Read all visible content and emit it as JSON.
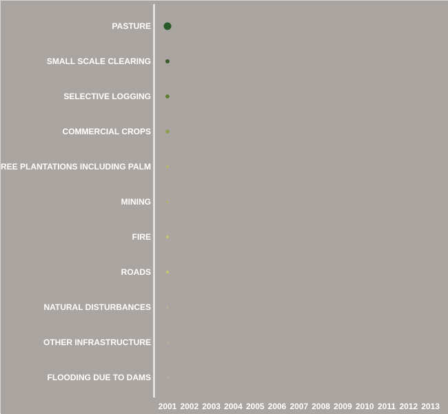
{
  "chart_data": {
    "type": "scatter",
    "title": "",
    "xlabel": "",
    "ylabel": "",
    "x": [
      "2001",
      "2002",
      "2003",
      "2004",
      "2005",
      "2006",
      "2007",
      "2008",
      "2009",
      "2010",
      "2011",
      "2012",
      "2013"
    ],
    "categories": [
      "PASTURE",
      "SMALL SCALE CLEARING",
      "SELECTIVE LOGGING",
      "COMMERCIAL CROPS",
      "TREE PLANTATIONS INCLUDING PALM",
      "MINING",
      "FIRE",
      "ROADS",
      "NATURAL DISTURBANCES",
      "OTHER INFRASTRUCTURE",
      "FLOODING DUE TO DAMS"
    ],
    "points": [
      {
        "category": "PASTURE",
        "year": "2001",
        "size": 100
      },
      {
        "category": "SMALL SCALE CLEARING",
        "year": "2001",
        "size": 30
      },
      {
        "category": "SELECTIVE LOGGING",
        "year": "2001",
        "size": 28
      },
      {
        "category": "COMMERCIAL CROPS",
        "year": "2001",
        "size": 25
      },
      {
        "category": "TREE PLANTATIONS INCLUDING PALM",
        "year": "2001",
        "size": 15
      },
      {
        "category": "MINING",
        "year": "2001",
        "size": 10
      },
      {
        "category": "FIRE",
        "year": "2001",
        "size": 16
      },
      {
        "category": "ROADS",
        "year": "2001",
        "size": 16
      },
      {
        "category": "NATURAL DISTURBANCES",
        "year": "2001",
        "size": 8
      },
      {
        "category": "OTHER INFRASTRUCTURE",
        "year": "2001",
        "size": 7
      },
      {
        "category": "FLOODING DUE TO DAMS",
        "year": "2001",
        "size": 7
      }
    ],
    "colors": {
      "background": "#aaa5a1",
      "axis": "#ffffff",
      "text": "#ffffff",
      "points": [
        "#275a27",
        "#3a5a2a",
        "#5e7d2e",
        "#8e9e48",
        "#b5b670",
        "#b3b470",
        "#c3c673",
        "#c3c673",
        "#b8b690",
        "#b4b29a",
        "#b4b29a"
      ]
    }
  }
}
